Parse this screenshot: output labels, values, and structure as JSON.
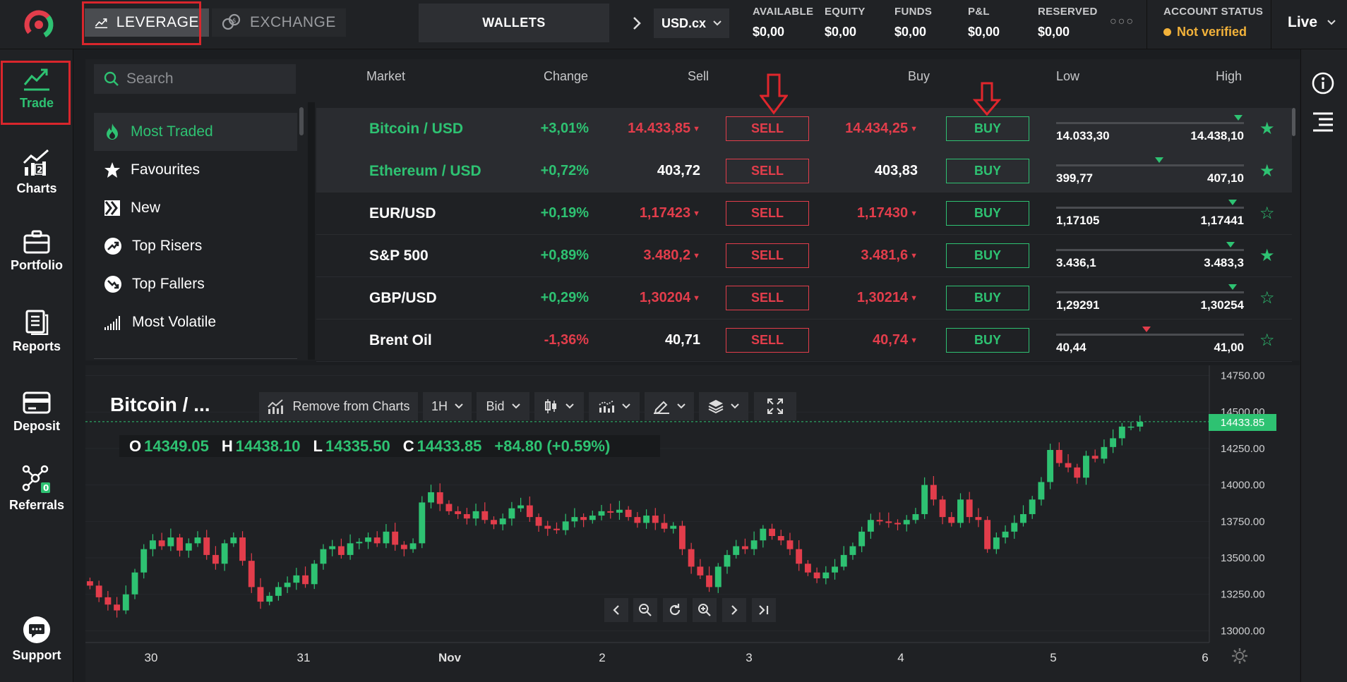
{
  "header": {
    "tabs": [
      {
        "label": "LEVERAGE",
        "icon": "chart-up-icon"
      },
      {
        "label": "EXCHANGE",
        "icon": "coins-icon"
      }
    ],
    "wallets_label": "WALLETS",
    "currency": "USD.cx",
    "stats": [
      {
        "label": "AVAILABLE",
        "value": "$0,00"
      },
      {
        "label": "EQUITY",
        "value": "$0,00"
      },
      {
        "label": "FUNDS",
        "value": "$0,00"
      },
      {
        "label": "P&L",
        "value": "$0,00"
      },
      {
        "label": "RESERVED",
        "value": "$0,00"
      }
    ],
    "more": "○○○",
    "account_status_label": "ACCOUNT STATUS",
    "account_status_value": "Not verified",
    "mode": "Live"
  },
  "nav": [
    {
      "label": "Trade",
      "icon": "trade-chart-icon"
    },
    {
      "label": "Charts",
      "icon": "charts-icon",
      "badge": "2"
    },
    {
      "label": "Portfolio",
      "icon": "briefcase-icon"
    },
    {
      "label": "Reports",
      "icon": "reports-icon"
    },
    {
      "label": "Deposit",
      "icon": "card-icon"
    },
    {
      "label": "Referrals",
      "icon": "network-icon",
      "badge": "0"
    },
    {
      "label": "Support",
      "icon": "chat-icon"
    }
  ],
  "search": {
    "placeholder": "Search"
  },
  "columns": {
    "market": "Market",
    "change": "Change",
    "sell": "Sell",
    "buy": "Buy",
    "low": "Low",
    "high": "High"
  },
  "categories": [
    {
      "label": "Most Traded",
      "icon": "flame-icon"
    },
    {
      "label": "Favourites",
      "icon": "star-icon"
    },
    {
      "label": "New",
      "icon": "new-icon"
    },
    {
      "label": "Top Risers",
      "icon": "arrow-up-right-icon"
    },
    {
      "label": "Top Fallers",
      "icon": "arrow-down-right-icon"
    },
    {
      "label": "Most Volatile",
      "icon": "signal-bars-icon"
    }
  ],
  "buttons": {
    "sell": "SELL",
    "buy": "BUY"
  },
  "markets": [
    {
      "name": "Bitcoin / USD",
      "change": "+3,01%",
      "sell": "14.433,85",
      "buy": "14.434,25",
      "low": "14.033,30",
      "high": "14.438,10",
      "level": 0.97,
      "fav": true,
      "up": true
    },
    {
      "name": "Ethereum / USD",
      "change": "+0,72%",
      "sell": "403,72",
      "buy": "403,83",
      "low": "399,77",
      "high": "407,10",
      "level": 0.55,
      "fav": true,
      "up": true
    },
    {
      "name": "EUR/USD",
      "change": "+0,19%",
      "sell": "1,17423",
      "buy": "1,17430",
      "low": "1,17105",
      "high": "1,17441",
      "level": 0.94,
      "fav": false,
      "up": true
    },
    {
      "name": "S&P 500",
      "change": "+0,89%",
      "sell": "3.480,2",
      "buy": "3.481,6",
      "low": "3.436,1",
      "high": "3.483,3",
      "level": 0.93,
      "fav": true,
      "up": true
    },
    {
      "name": "GBP/USD",
      "change": "+0,29%",
      "sell": "1,30204",
      "buy": "1,30214",
      "low": "1,29291",
      "high": "1,30254",
      "level": 0.94,
      "fav": false,
      "up": true
    },
    {
      "name": "Brent Oil",
      "change": "-1,36%",
      "sell": "40,71",
      "buy": "40,74",
      "low": "40,44",
      "high": "41,00",
      "level": 0.48,
      "fav": false,
      "up": false
    }
  ],
  "chart": {
    "title": "Bitcoin / ...",
    "toolbar": {
      "remove_label": "Remove from Charts",
      "interval": "1H",
      "price_type": "Bid"
    },
    "ohlc": {
      "o": "14349.05",
      "h": "14438.10",
      "l": "14335.50",
      "c": "14433.85",
      "chg": "+84.80 (+0.59%)"
    },
    "price_tag": "14433.85",
    "colors": {
      "up": "#2ec272",
      "down": "#e23d4b"
    }
  },
  "chart_data": {
    "type": "candlestick",
    "x_ticks": [
      "30",
      "31",
      "Nov",
      "2",
      "3",
      "4",
      "5",
      "6"
    ],
    "y_ticks": [
      "14750.00",
      "14500.00",
      "14250.00",
      "14000.00",
      "13750.00",
      "13500.00",
      "13250.00",
      "13000.00"
    ],
    "ylim": [
      12920,
      14820
    ],
    "last": 14433.85,
    "closes": [
      13310,
      13230,
      13180,
      13140,
      13250,
      13400,
      13560,
      13620,
      13580,
      13640,
      13550,
      13600,
      13640,
      13520,
      13460,
      13600,
      13640,
      13480,
      13300,
      13200,
      13240,
      13300,
      13330,
      13380,
      13320,
      13460,
      13560,
      13580,
      13520,
      13600,
      13610,
      13640,
      13600,
      13680,
      13590,
      13560,
      13600,
      13880,
      13950,
      13870,
      13820,
      13800,
      13770,
      13820,
      13760,
      13730,
      13770,
      13840,
      13860,
      13780,
      13720,
      13700,
      13690,
      13750,
      13780,
      13760,
      13790,
      13820,
      13810,
      13830,
      13780,
      13740,
      13790,
      13740,
      13700,
      13720,
      13560,
      13440,
      13380,
      13300,
      13440,
      13520,
      13580,
      13560,
      13620,
      13700,
      13650,
      13620,
      13560,
      13460,
      13400,
      13360,
      13400,
      13440,
      13520,
      13580,
      13680,
      13760,
      13750,
      13740,
      13730,
      13760,
      13800,
      14000,
      13900,
      13780,
      13740,
      13900,
      13780,
      13760,
      13560,
      13640,
      13680,
      13740,
      13800,
      13900,
      14020,
      14240,
      14150,
      14120,
      14050,
      14200,
      14180,
      14260,
      14320,
      14400,
      14400,
      14433
    ]
  }
}
